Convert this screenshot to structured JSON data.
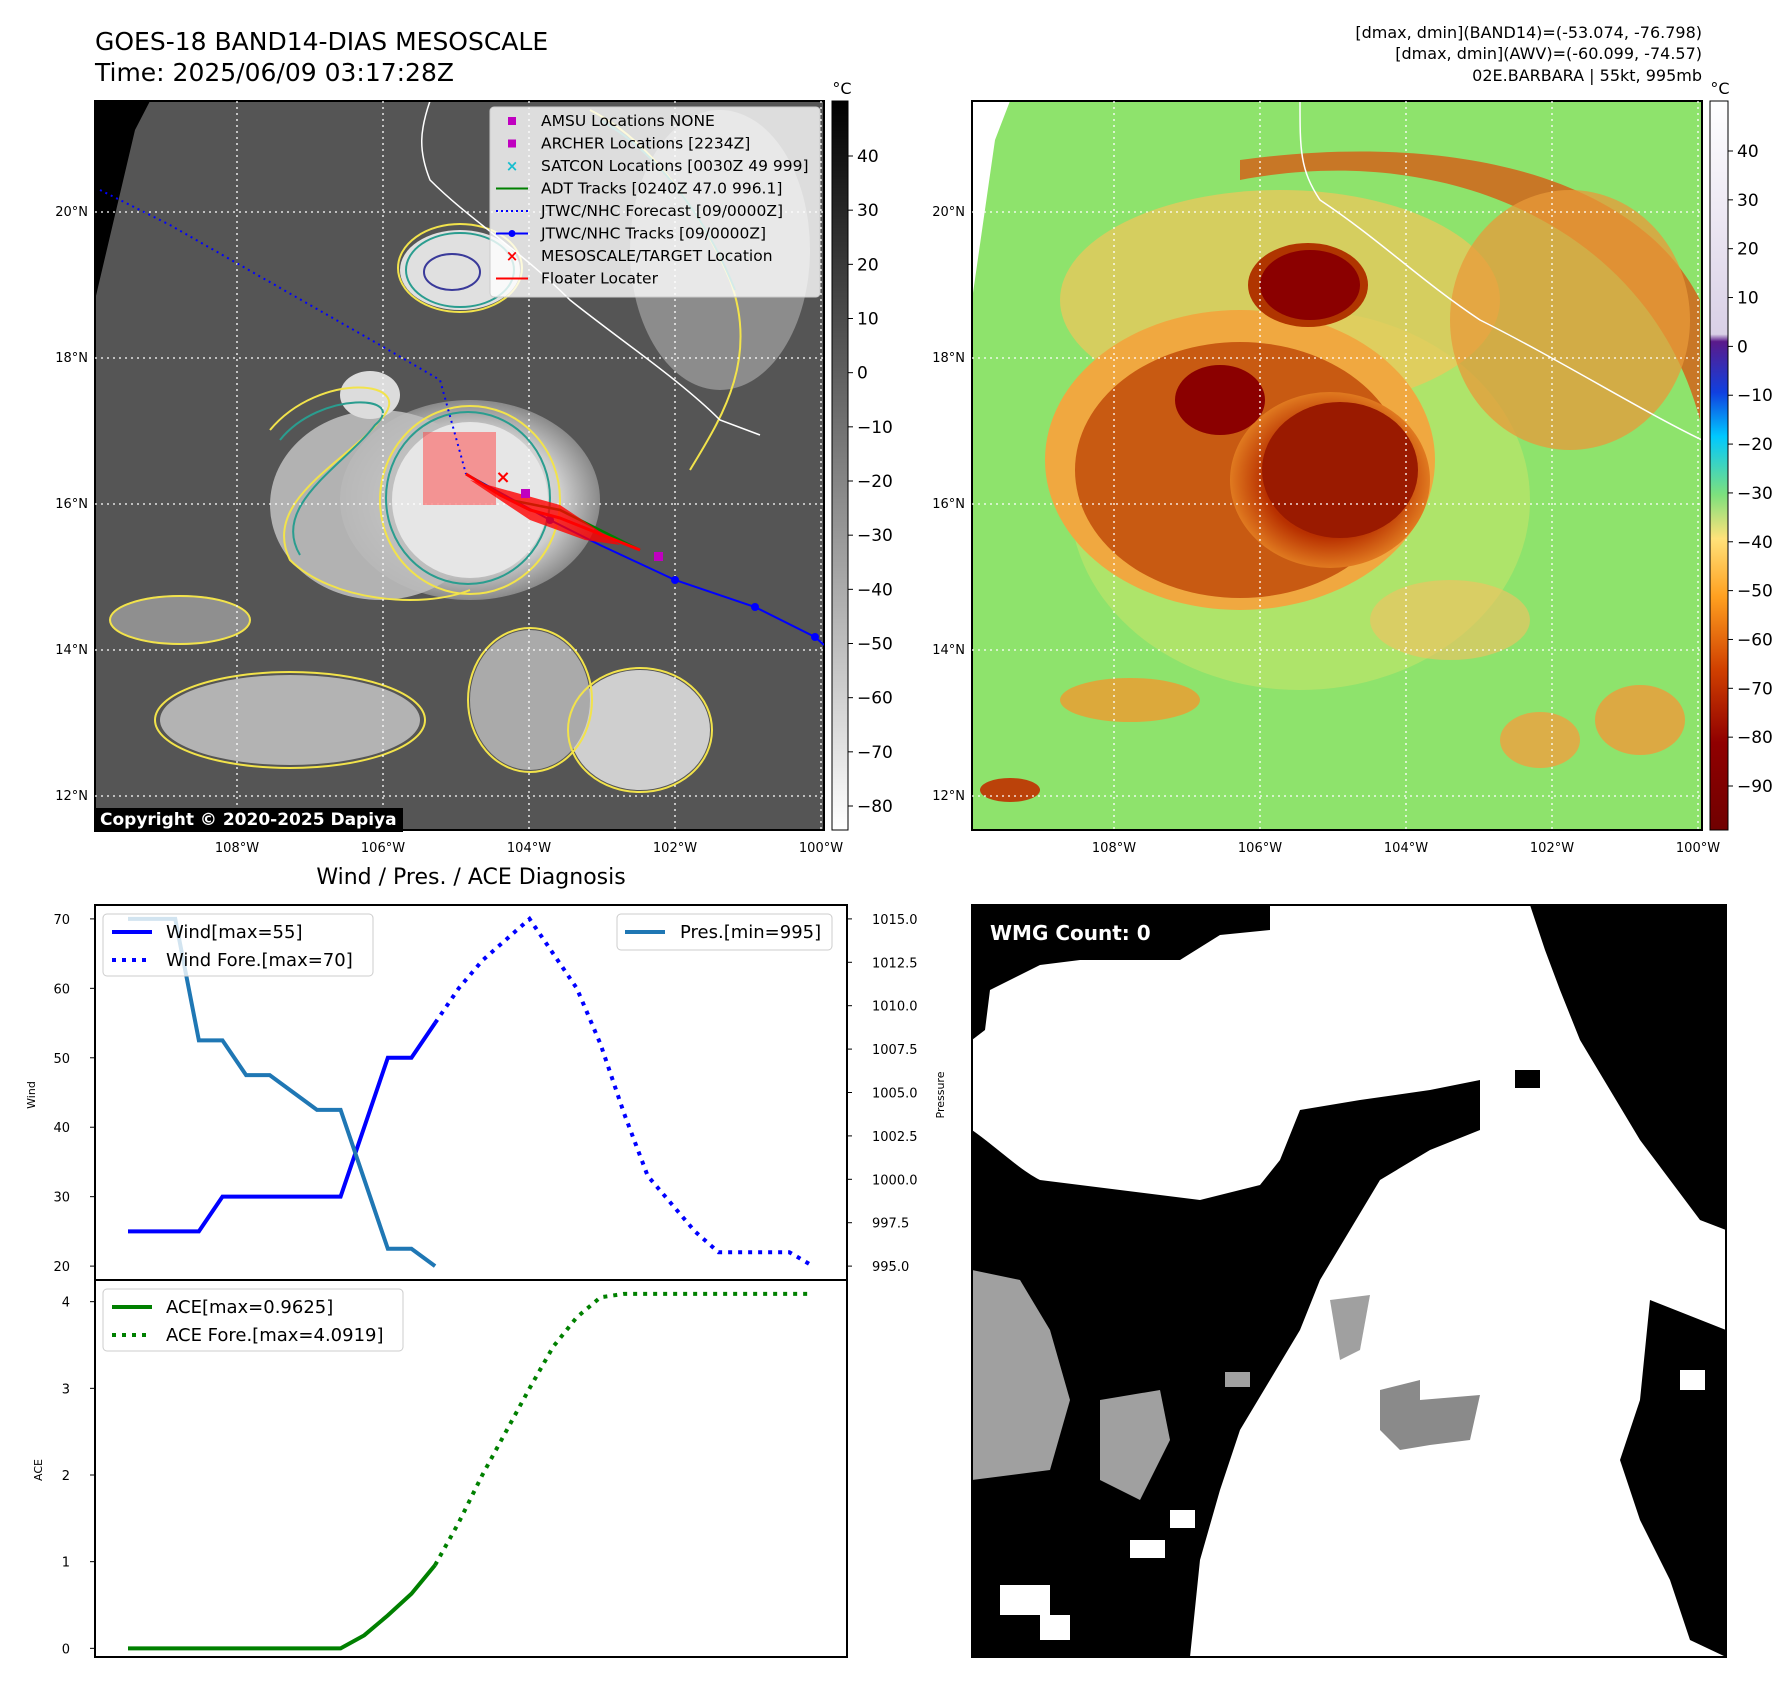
{
  "header": {
    "title_line1": "GOES-18 BAND14-DIAS MESOSCALE",
    "title_line2": "Time: 2025/06/09 03:17:28Z",
    "right_line1": "[dmax, dmin](BAND14)=(-53.074, -76.798)",
    "right_line2": "[dmax, dmin](AWV)=(-60.099, -74.57)",
    "right_line3": "02E.BARBARA | 55kt, 995mb",
    "copyright": "Copyright © 2020-2025 Dapiya"
  },
  "map_axes": {
    "lat_labels": [
      "20°N",
      "18°N",
      "16°N",
      "14°N",
      "12°N"
    ],
    "lon_labels": [
      "108°W",
      "106°W",
      "104°W",
      "102°W",
      "100°W"
    ],
    "unit": "°C"
  },
  "gray_colorbar": {
    "unit": "°C",
    "ticks": [
      "40",
      "30",
      "20",
      "10",
      "0",
      "−10",
      "−20",
      "−30",
      "−40",
      "−50",
      "−60",
      "−70",
      "−80"
    ]
  },
  "color_colorbar": {
    "unit": "°C",
    "ticks": [
      "40",
      "30",
      "20",
      "10",
      "0",
      "−10",
      "−20",
      "−30",
      "−40",
      "−50",
      "−60",
      "−70",
      "−80",
      "−90"
    ]
  },
  "colors": {
    "wind": "#0000ff",
    "pressure": "#1f77b4",
    "ace": "#008000",
    "contour_yellow": "#f2e34b",
    "contour_teal": "#2a9d8f"
  },
  "legend": [
    {
      "label": "AMSU Locations NONE",
      "marker": "square",
      "color": "#c000c0"
    },
    {
      "label": "ARCHER Locations [2234Z]",
      "marker": "square",
      "color": "#c000c0"
    },
    {
      "label": "SATCON Locations [0030Z 49 999]",
      "marker": "x",
      "color": "#17becf"
    },
    {
      "label": "ADT Tracks [0240Z 47.0 996.1]",
      "marker": "line",
      "color": "#008000"
    },
    {
      "label": "JTWC/NHC Forecast [09/0000Z]",
      "marker": "dotted",
      "color": "#0000ff"
    },
    {
      "label": "JTWC/NHC Tracks [09/0000Z]",
      "marker": "line-dot",
      "color": "#0000ff"
    },
    {
      "label": "MESOSCALE/TARGET Location",
      "marker": "x",
      "color": "#ff0000"
    },
    {
      "label": "Floater Locater",
      "marker": "line",
      "color": "#ff0000"
    }
  ],
  "wmg": {
    "label": "WMG Count: 0"
  },
  "chart_data": [
    {
      "type": "line",
      "title": "Wind / Pres. / ACE Diagnosis",
      "ylabel": "Wind",
      "y2label": "Pressure",
      "ylim": [
        18,
        72
      ],
      "y2lim": [
        994.2,
        1015.8
      ],
      "yticks": [
        20,
        30,
        40,
        50,
        60,
        70
      ],
      "y2ticks": [
        "995.0",
        "997.5",
        "1000.0",
        "1002.5",
        "1005.0",
        "1007.5",
        "1010.0",
        "1012.5",
        "1015.0"
      ],
      "x": [
        0,
        1,
        2,
        3,
        4,
        5,
        6,
        7,
        8,
        9,
        10,
        11,
        12,
        13,
        14,
        15,
        16,
        17,
        18,
        19,
        20,
        21,
        22,
        23,
        24,
        25,
        26,
        27,
        28,
        29
      ],
      "series": [
        {
          "name": "Wind[max=55]",
          "axis": "left",
          "style": "solid",
          "x": [
            0,
            1,
            2,
            3,
            4,
            5,
            6,
            7,
            8,
            9,
            10,
            11,
            12,
            13
          ],
          "values": [
            25,
            25,
            25,
            25,
            30,
            30,
            30,
            30,
            30,
            30,
            40,
            50,
            50,
            55
          ]
        },
        {
          "name": "Wind Fore.[max=70]",
          "axis": "left",
          "style": "dotted",
          "x": [
            13,
            14,
            15,
            16,
            17,
            18,
            19,
            20,
            21,
            22,
            23,
            24,
            25,
            26,
            27,
            28,
            29
          ],
          "values": [
            55,
            60,
            64,
            67,
            70,
            65,
            60,
            52,
            42,
            33,
            29,
            25,
            22,
            22,
            22,
            22,
            20
          ]
        },
        {
          "name": "Pres.[min=995]",
          "axis": "right",
          "style": "solid",
          "x": [
            0,
            1,
            2,
            3,
            4,
            5,
            6,
            7,
            8,
            9,
            10,
            11,
            12,
            13
          ],
          "values": [
            1015,
            1015,
            1015,
            1008,
            1008,
            1006,
            1006,
            1005,
            1004,
            1004,
            1000,
            996,
            996,
            995
          ]
        }
      ],
      "legend_left": "top-left",
      "legend_right": "top-right"
    },
    {
      "type": "line",
      "ylabel": "ACE",
      "ylim": [
        -0.1,
        4.25
      ],
      "yticks": [
        0,
        1,
        2,
        3,
        4
      ],
      "series": [
        {
          "name": "ACE[max=0.9625]",
          "style": "solid",
          "x": [
            0,
            1,
            2,
            3,
            4,
            5,
            6,
            7,
            8,
            9,
            10,
            11,
            12,
            13
          ],
          "values": [
            0,
            0,
            0,
            0,
            0,
            0,
            0,
            0,
            0,
            0,
            0.15,
            0.38,
            0.63,
            0.96
          ]
        },
        {
          "name": "ACE Fore.[max=4.0919]",
          "style": "dotted",
          "x": [
            13,
            14,
            15,
            16,
            17,
            18,
            19,
            20,
            21,
            22,
            23,
            24,
            25,
            26,
            27,
            28,
            29
          ],
          "values": [
            0.96,
            1.45,
            2.0,
            2.5,
            3.0,
            3.48,
            3.82,
            4.05,
            4.09,
            4.09,
            4.09,
            4.09,
            4.09,
            4.09,
            4.09,
            4.09,
            4.09
          ]
        }
      ],
      "legend": "top-left"
    }
  ]
}
